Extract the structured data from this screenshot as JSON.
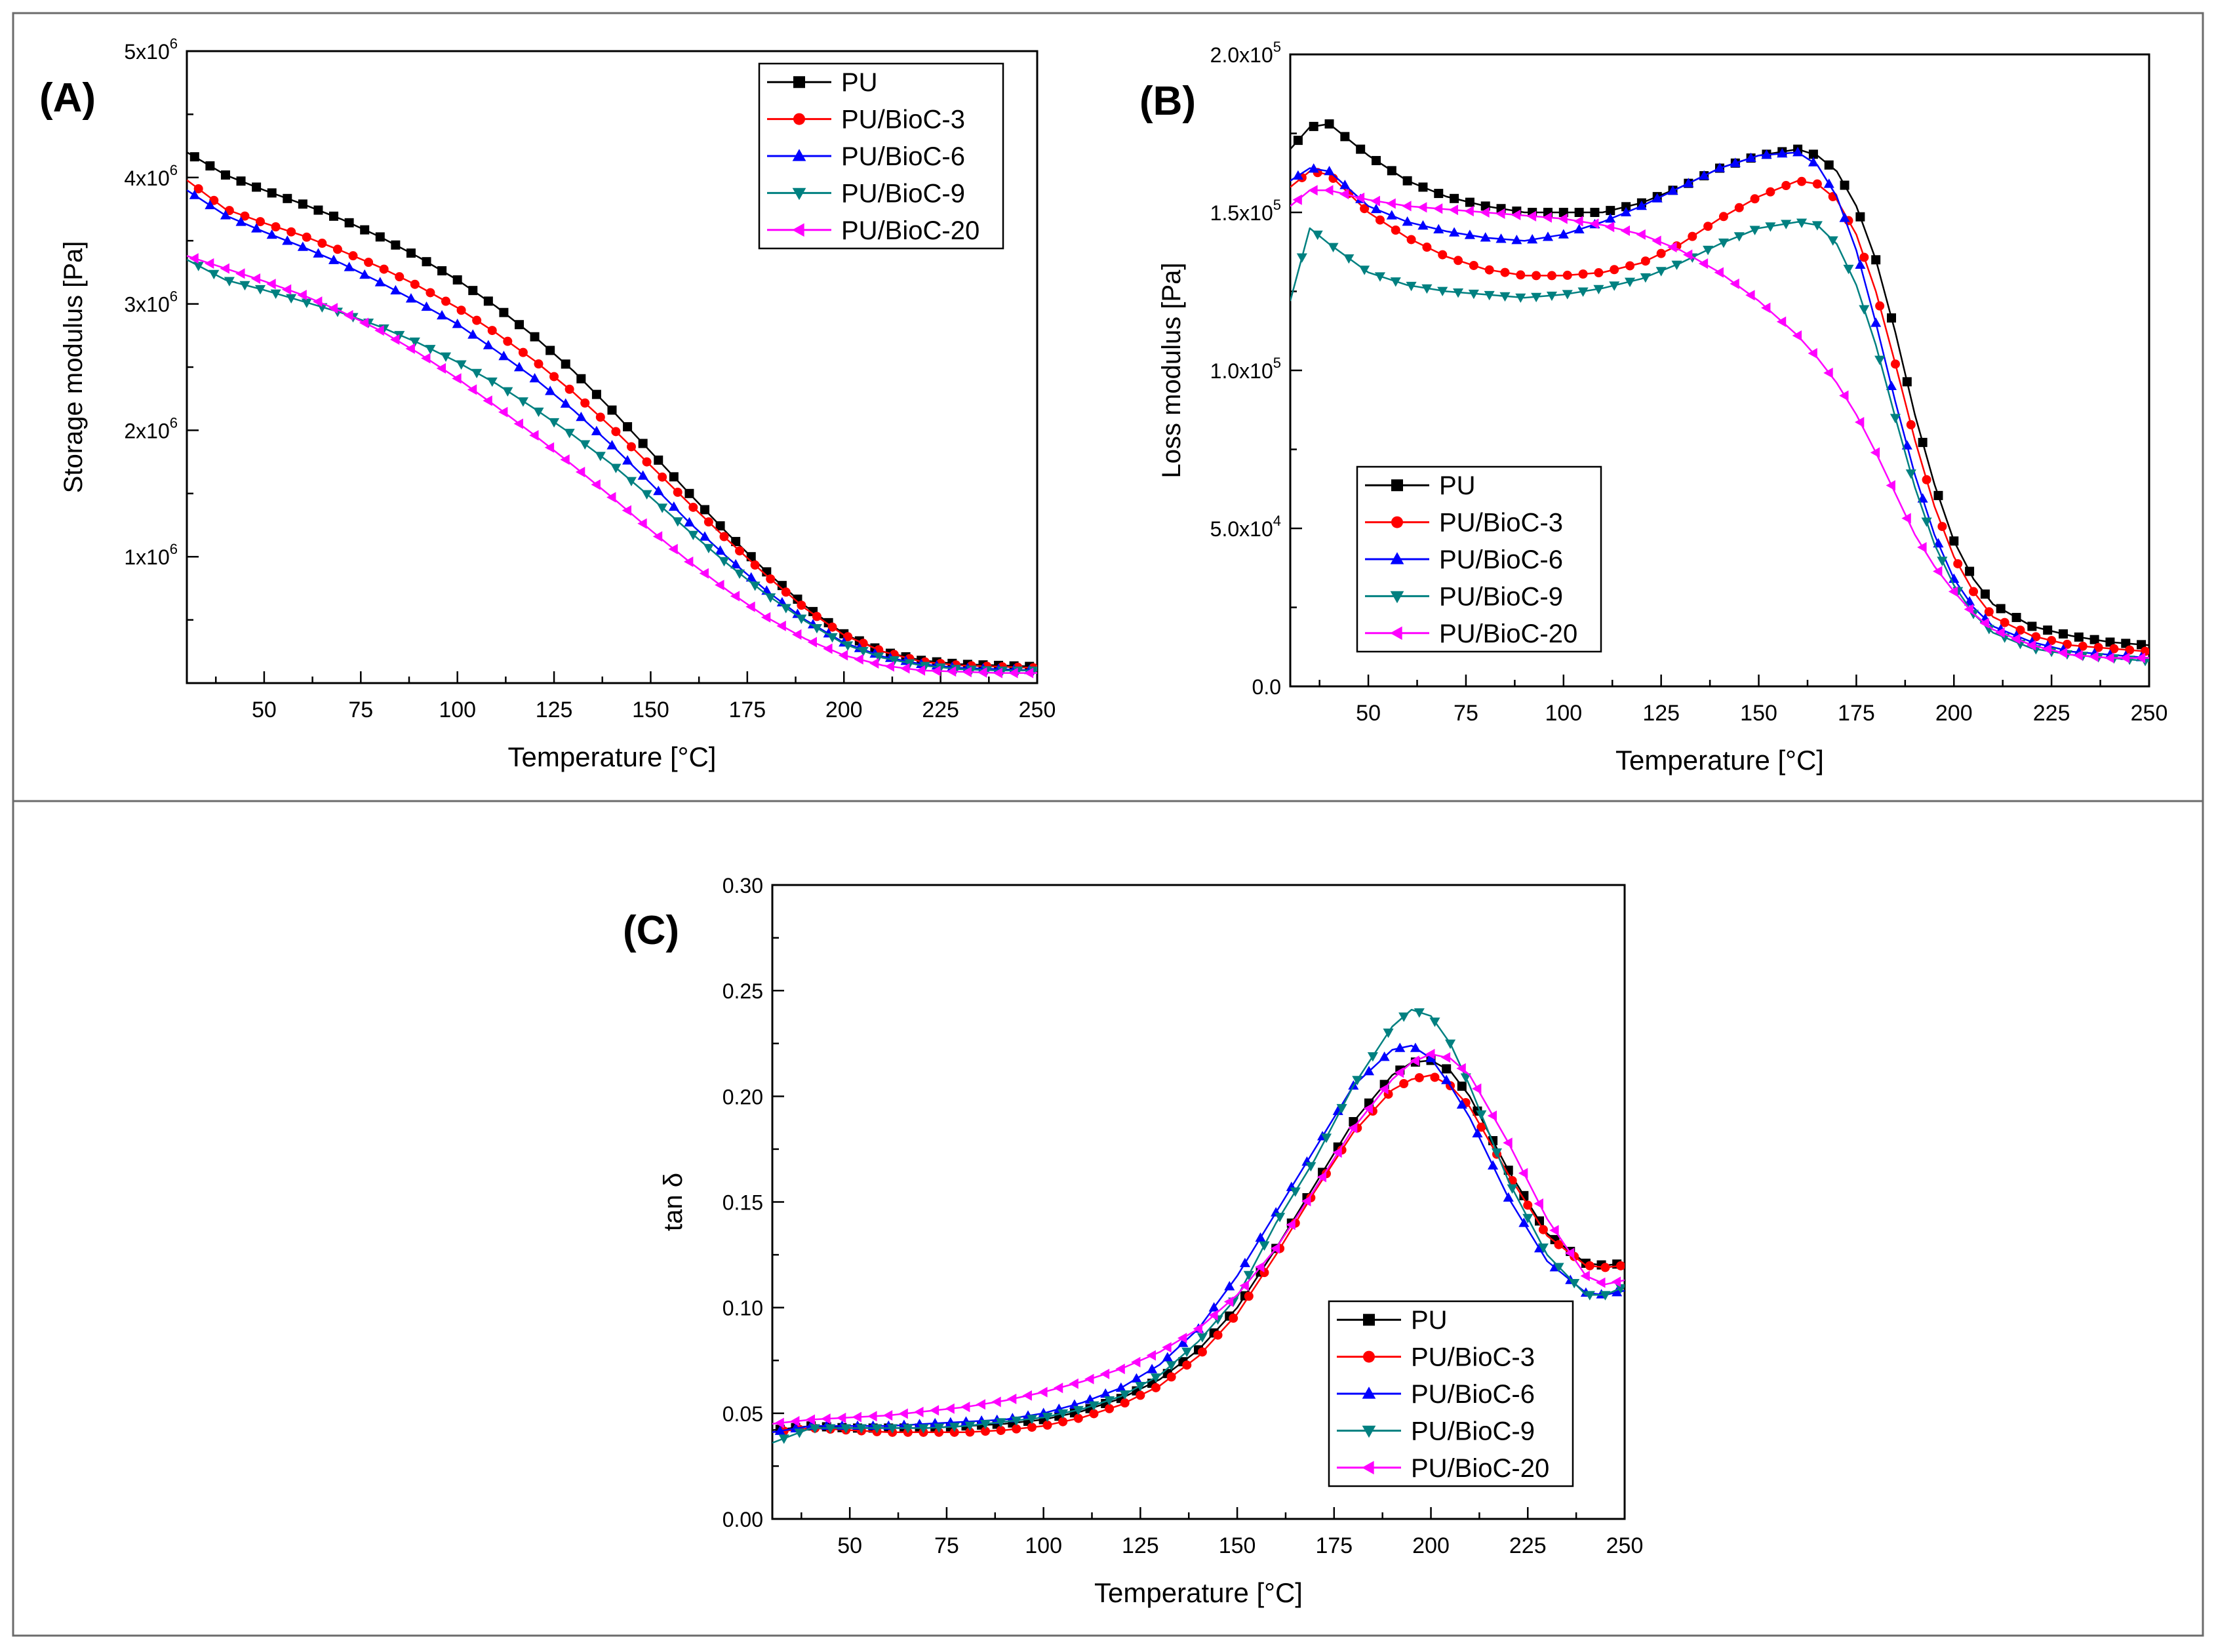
{
  "figure": {
    "panel_labels": [
      "(A)",
      "(B)",
      "(C)"
    ],
    "series_colors": {
      "PU": "#000000",
      "PU/BioC-3": "#ff0000",
      "PU/BioC-6": "#0000ff",
      "PU/BioC-9": "#008080",
      "PU/BioC-20": "#ff00ff"
    },
    "series_markers": {
      "PU": "square",
      "PU/BioC-3": "circle",
      "PU/BioC-6": "triangle-up",
      "PU/BioC-9": "triangle-down",
      "PU/BioC-20": "triangle-left"
    }
  },
  "chart_data": [
    {
      "id": "A",
      "panel_label": "(A)",
      "type": "line",
      "xlabel": "Temperature [°C]",
      "ylabel": "Storage modulus [Pa]",
      "xlim": [
        30,
        250
      ],
      "ylim": [
        0,
        5000000
      ],
      "xticks": [
        50,
        75,
        100,
        125,
        150,
        175,
        200,
        225,
        250
      ],
      "xtick_labels": [
        "50",
        "75",
        "100",
        "125",
        "150",
        "175",
        "200",
        "225",
        "250"
      ],
      "yticks": [
        1000000,
        2000000,
        3000000,
        4000000,
        5000000
      ],
      "ytick_labels": [
        {
          "base": "1x10",
          "exp": "6"
        },
        {
          "base": "2x10",
          "exp": "6"
        },
        {
          "base": "3x10",
          "exp": "6"
        },
        {
          "base": "4x10",
          "exp": "6"
        },
        {
          "base": "5x10",
          "exp": "6"
        }
      ],
      "legend_position": "top-right",
      "x": [
        30,
        40,
        50,
        60,
        70,
        80,
        90,
        100,
        110,
        120,
        130,
        140,
        150,
        160,
        170,
        180,
        190,
        200,
        210,
        220,
        230,
        240,
        250
      ],
      "series": [
        {
          "name": "PU",
          "values": [
            4200000,
            4020000,
            3900000,
            3790000,
            3670000,
            3530000,
            3370000,
            3190000,
            2980000,
            2740000,
            2470000,
            2160000,
            1830000,
            1500000,
            1180000,
            880000,
            610000,
            390000,
            250000,
            180000,
            150000,
            140000,
            130000
          ]
        },
        {
          "name": "PU/BioC-3",
          "values": [
            3980000,
            3750000,
            3640000,
            3540000,
            3420000,
            3290000,
            3140000,
            2970000,
            2770000,
            2550000,
            2300000,
            2020000,
            1720000,
            1420000,
            1130000,
            850000,
            590000,
            380000,
            250000,
            170000,
            140000,
            130000,
            120000
          ]
        },
        {
          "name": "PU/BioC-6",
          "values": [
            3900000,
            3700000,
            3570000,
            3450000,
            3320000,
            3170000,
            3010000,
            2840000,
            2630000,
            2410000,
            2160000,
            1880000,
            1580000,
            1270000,
            990000,
            730000,
            500000,
            320000,
            210000,
            150000,
            120000,
            110000,
            100000
          ]
        },
        {
          "name": "PU/BioC-9",
          "values": [
            3350000,
            3190000,
            3110000,
            3020000,
            2930000,
            2820000,
            2690000,
            2540000,
            2370000,
            2170000,
            1960000,
            1730000,
            1470000,
            1200000,
            940000,
            700000,
            490000,
            310000,
            200000,
            140000,
            110000,
            100000,
            100000
          ]
        },
        {
          "name": "PU/BioC-20",
          "values": [
            3380000,
            3280000,
            3180000,
            3070000,
            2940000,
            2790000,
            2610000,
            2410000,
            2190000,
            1960000,
            1720000,
            1470000,
            1210000,
            960000,
            730000,
            520000,
            350000,
            220000,
            140000,
            100000,
            90000,
            80000,
            80000
          ]
        }
      ]
    },
    {
      "id": "B",
      "panel_label": "(B)",
      "type": "line",
      "xlabel": "Temperature [°C]",
      "ylabel": "Loss modulus [Pa]",
      "xlim": [
        30,
        250
      ],
      "ylim": [
        0,
        200000
      ],
      "xticks": [
        50,
        75,
        100,
        125,
        150,
        175,
        200,
        225,
        250
      ],
      "xtick_labels": [
        "50",
        "75",
        "100",
        "125",
        "150",
        "175",
        "200",
        "225",
        "250"
      ],
      "yticks": [
        0,
        50000,
        100000,
        150000,
        200000
      ],
      "ytick_labels": [
        {
          "base": "0.0",
          "exp": ""
        },
        {
          "base": "5.0x10",
          "exp": "4"
        },
        {
          "base": "1.0x10",
          "exp": "5"
        },
        {
          "base": "1.5x10",
          "exp": "5"
        },
        {
          "base": "2.0x10",
          "exp": "5"
        }
      ],
      "legend_position": "bottom-left",
      "x": [
        30,
        35,
        40,
        50,
        60,
        70,
        80,
        90,
        100,
        110,
        120,
        130,
        140,
        150,
        160,
        165,
        170,
        175,
        180,
        185,
        190,
        195,
        200,
        205,
        210,
        220,
        230,
        240,
        250
      ],
      "series": [
        {
          "name": "PU",
          "values": [
            170000,
            177000,
            178000,
            168000,
            160000,
            155000,
            152000,
            150000,
            150000,
            150000,
            153000,
            158000,
            164000,
            168000,
            170000,
            168000,
            163000,
            152000,
            135000,
            112000,
            86000,
            64000,
            46000,
            34000,
            26000,
            19000,
            16000,
            14000,
            13000
          ]
        },
        {
          "name": "PU/BioC-3",
          "values": [
            158000,
            163000,
            162000,
            150000,
            142000,
            136000,
            132000,
            130000,
            130000,
            131000,
            134000,
            140000,
            148000,
            155000,
            160000,
            159000,
            154000,
            143000,
            125000,
            102000,
            78000,
            57000,
            41000,
            30000,
            22000,
            16000,
            13000,
            12000,
            11000
          ]
        },
        {
          "name": "PU/BioC-6",
          "values": [
            160000,
            164000,
            163000,
            152000,
            147000,
            144000,
            142000,
            141000,
            143000,
            147000,
            152000,
            158000,
            164000,
            168000,
            169000,
            165000,
            155000,
            138000,
            115000,
            90000,
            67000,
            48000,
            34000,
            25000,
            19000,
            14000,
            11000,
            10000,
            9000
          ]
        },
        {
          "name": "PU/BioC-9",
          "values": [
            122000,
            145000,
            140000,
            131000,
            127000,
            125000,
            124000,
            123000,
            124000,
            126000,
            129000,
            134000,
            140000,
            145000,
            147000,
            146000,
            140000,
            127000,
            108000,
            85000,
            63000,
            45000,
            32000,
            23000,
            17000,
            12000,
            10000,
            9000,
            8000
          ]
        },
        {
          "name": "PU/BioC-20",
          "values": [
            152000,
            157000,
            157000,
            154000,
            152000,
            151000,
            150000,
            149000,
            148000,
            146000,
            143000,
            138000,
            131000,
            122000,
            111000,
            104000,
            96000,
            86000,
            74000,
            61000,
            48000,
            38000,
            30000,
            23000,
            18000,
            13000,
            10000,
            9000,
            9000
          ]
        }
      ]
    },
    {
      "id": "C",
      "panel_label": "(C)",
      "type": "line",
      "xlabel": "Temperature [°C]",
      "ylabel": "tan δ",
      "xlim": [
        30,
        250
      ],
      "ylim": [
        0,
        0.3
      ],
      "xticks": [
        50,
        75,
        100,
        125,
        150,
        175,
        200,
        225,
        250
      ],
      "xtick_labels": [
        "50",
        "75",
        "100",
        "125",
        "150",
        "175",
        "200",
        "225",
        "250"
      ],
      "yticks": [
        0,
        0.05,
        0.1,
        0.15,
        0.2,
        0.25,
        0.3
      ],
      "ytick_labels": [
        {
          "base": "0.00",
          "exp": ""
        },
        {
          "base": "0.05",
          "exp": ""
        },
        {
          "base": "0.10",
          "exp": ""
        },
        {
          "base": "0.15",
          "exp": ""
        },
        {
          "base": "0.20",
          "exp": ""
        },
        {
          "base": "0.25",
          "exp": ""
        },
        {
          "base": "0.30",
          "exp": ""
        }
      ],
      "legend_position": "bottom-right",
      "x": [
        30,
        40,
        50,
        60,
        70,
        80,
        90,
        100,
        110,
        120,
        130,
        140,
        150,
        160,
        170,
        180,
        190,
        195,
        200,
        205,
        210,
        220,
        230,
        240,
        245,
        250
      ],
      "series": [
        {
          "name": "PU",
          "values": [
            0.042,
            0.044,
            0.043,
            0.043,
            0.043,
            0.044,
            0.045,
            0.047,
            0.051,
            0.057,
            0.066,
            0.08,
            0.1,
            0.128,
            0.158,
            0.188,
            0.21,
            0.216,
            0.217,
            0.212,
            0.2,
            0.165,
            0.135,
            0.121,
            0.12,
            0.121
          ]
        },
        {
          "name": "PU/BioC-3",
          "values": [
            0.041,
            0.043,
            0.042,
            0.041,
            0.041,
            0.041,
            0.042,
            0.044,
            0.048,
            0.054,
            0.063,
            0.077,
            0.097,
            0.125,
            0.155,
            0.183,
            0.203,
            0.208,
            0.21,
            0.205,
            0.195,
            0.163,
            0.134,
            0.12,
            0.119,
            0.12
          ]
        },
        {
          "name": "PU/BioC-6",
          "values": [
            0.041,
            0.044,
            0.044,
            0.044,
            0.045,
            0.046,
            0.047,
            0.05,
            0.055,
            0.062,
            0.073,
            0.09,
            0.115,
            0.145,
            0.175,
            0.205,
            0.222,
            0.224,
            0.218,
            0.205,
            0.19,
            0.152,
            0.122,
            0.107,
            0.106,
            0.108
          ]
        },
        {
          "name": "PU/BioC-9",
          "values": [
            0.036,
            0.043,
            0.043,
            0.043,
            0.043,
            0.044,
            0.046,
            0.048,
            0.052,
            0.058,
            0.068,
            0.084,
            0.105,
            0.14,
            0.17,
            0.205,
            0.233,
            0.241,
            0.238,
            0.225,
            0.205,
            0.16,
            0.125,
            0.106,
            0.106,
            0.11
          ]
        },
        {
          "name": "PU/BioC-20",
          "values": [
            0.045,
            0.047,
            0.048,
            0.049,
            0.051,
            0.053,
            0.056,
            0.06,
            0.065,
            0.071,
            0.079,
            0.09,
            0.106,
            0.128,
            0.156,
            0.185,
            0.208,
            0.216,
            0.22,
            0.218,
            0.21,
            0.178,
            0.142,
            0.115,
            0.111,
            0.113
          ]
        }
      ]
    }
  ]
}
